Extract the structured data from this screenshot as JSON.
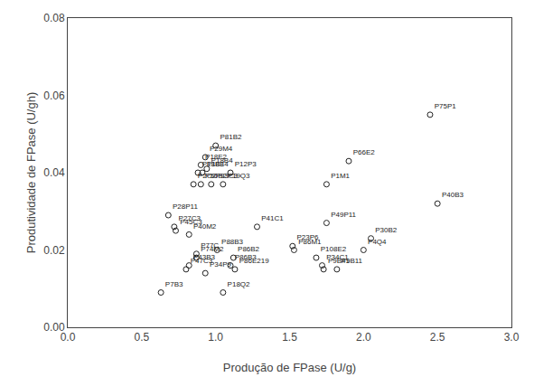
{
  "chart_data": {
    "type": "scatter",
    "xlabel": "Produção de FPase (U/g)",
    "ylabel": "Produtividade de FPase (U/gh)",
    "labels": [
      "P75P1",
      "P66E2",
      "P40B3",
      "P81B2",
      "P29M4",
      "P18E2",
      "P12P3",
      "P1M1",
      "P49P11",
      "P30B2",
      "P41C1",
      "P28P11",
      "P27C3",
      "P45C3",
      "P40M2",
      "P23P6",
      "P86M1",
      "P4Q4",
      "P108E2",
      "P88B3",
      "P77C",
      "P74M2",
      "P43B3",
      "P47C3",
      "P34P9",
      "P86B2",
      "P86B3",
      "P86E219",
      "P9B41",
      "P9B11",
      "P34C1",
      "P7B3",
      "P18Q2",
      "P2O2",
      "P50B2",
      "P93C3",
      "P19Q3",
      "P18E4",
      "P18B3",
      "P18B4"
    ],
    "x": [
      2.45,
      1.9,
      2.5,
      1.0,
      0.93,
      0.9,
      1.1,
      1.75,
      1.75,
      2.05,
      1.28,
      0.68,
      0.72,
      0.73,
      0.82,
      1.52,
      1.53,
      2.0,
      1.68,
      1.01,
      0.87,
      0.87,
      0.82,
      0.8,
      0.93,
      1.12,
      1.1,
      1.13,
      1.73,
      1.82,
      1.72,
      0.63,
      1.05,
      0.85,
      0.9,
      0.97,
      1.05,
      0.91,
      0.88,
      0.94
    ],
    "values": [
      0.055,
      0.043,
      0.032,
      0.047,
      0.044,
      0.042,
      0.04,
      0.037,
      0.027,
      0.023,
      0.026,
      0.029,
      0.026,
      0.025,
      0.024,
      0.021,
      0.02,
      0.02,
      0.018,
      0.02,
      0.019,
      0.018,
      0.016,
      0.015,
      0.014,
      0.018,
      0.016,
      0.015,
      0.015,
      0.015,
      0.016,
      0.009,
      0.009,
      0.037,
      0.037,
      0.037,
      0.037,
      0.04,
      0.04,
      0.041
    ],
    "color": "#222222",
    "marker": "circle-open",
    "xlim": [
      0.0,
      3.0
    ],
    "ylim": [
      0.0,
      0.08
    ],
    "xticks": [
      {
        "value": 0.0,
        "label": "0.0"
      },
      0.5,
      {
        "value": 1.0,
        "label": "1.0"
      },
      1.5,
      {
        "value": 2.0,
        "label": "2.0"
      },
      2.5,
      {
        "value": 3.0,
        "label": "3.0"
      }
    ],
    "yticks": [
      {
        "value": 0.0,
        "label": "0.00"
      },
      0.02,
      0.04,
      0.06,
      0.08
    ],
    "grid": false
  }
}
